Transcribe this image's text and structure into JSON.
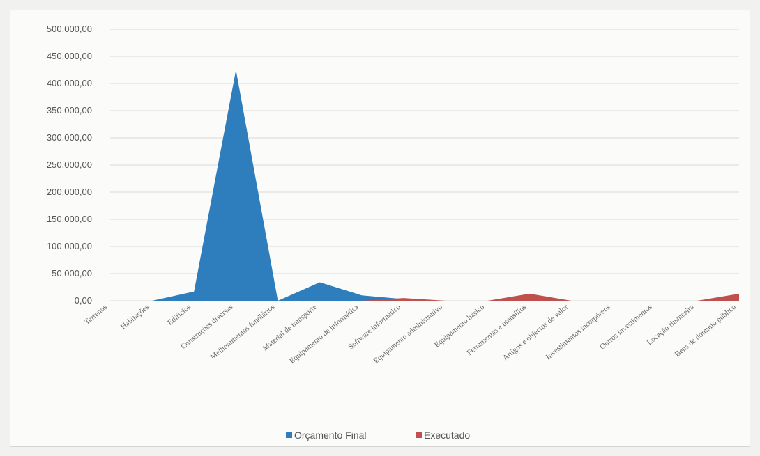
{
  "chart_data": {
    "type": "area",
    "categories": [
      "Terrenos",
      "Habitações",
      "Edifícios",
      "Construções diversas",
      "Melhoramentos fundiários",
      "Material de transporte",
      "Equipamento de informática",
      "Software informático",
      "Equipamento administrativo",
      "Equipamento básico",
      "Ferramentas e utensílios",
      "Artigos e objectos de valor",
      "Investimentos incorpóreos",
      "Outros investimentos",
      "Locação financeira",
      "Bens de domínio público"
    ],
    "series": [
      {
        "name": "Orçamento Final",
        "color": "#2e7dbd",
        "values": [
          0,
          0,
          17000,
          425000,
          0,
          34000,
          10000,
          3000,
          0,
          0,
          0,
          0,
          0,
          0,
          0,
          0
        ]
      },
      {
        "name": "Executado",
        "color": "#c0504d",
        "values": [
          0,
          0,
          0,
          0,
          0,
          0,
          0,
          5000,
          0,
          0,
          13000,
          0,
          0,
          0,
          0,
          13000
        ]
      }
    ],
    "ylim": [
      0,
      500000
    ],
    "yticks": [
      "0,00",
      "50.000,00",
      "100.000,00",
      "150.000,00",
      "200.000,00",
      "250.000,00",
      "300.000,00",
      "350.000,00",
      "400.000,00",
      "450.000,00",
      "500.000,00"
    ],
    "grid": true,
    "legend": "bottom"
  }
}
